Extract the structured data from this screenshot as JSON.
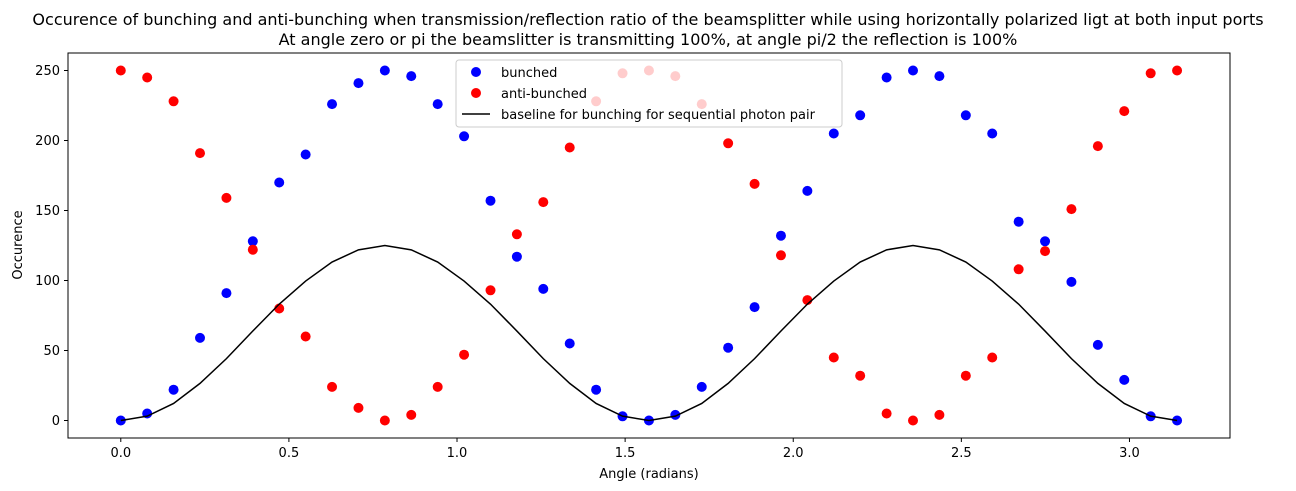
{
  "chart_data": {
    "type": "scatter",
    "title": "Occurence of bunching and anti-bunching when transmission/reflection ratio of the beamsplitter while using horizontally polarized ligt at both input ports",
    "subtitle": "At angle zero or pi the beamslitter is transmitting 100%, at angle pi/2 the reflection is 100%",
    "xlabel": "Angle (radians)",
    "ylabel": "Occurence",
    "xlim": [
      -0.157,
      3.299
    ],
    "ylim": [
      -12.5,
      262.5
    ],
    "xticks": [
      0.0,
      0.5,
      1.0,
      1.5,
      2.0,
      2.5,
      3.0
    ],
    "xtick_labels": [
      "0.0",
      "0.5",
      "1.0",
      "1.5",
      "2.0",
      "2.5",
      "3.0"
    ],
    "yticks": [
      0,
      50,
      100,
      150,
      200,
      250
    ],
    "ytick_labels": [
      "0",
      "50",
      "100",
      "150",
      "200",
      "250"
    ],
    "grid": false,
    "legend_position": "top-center",
    "x": [
      0.0,
      0.0785,
      0.157,
      0.2356,
      0.3142,
      0.3927,
      0.4712,
      0.5498,
      0.6283,
      0.7069,
      0.7854,
      0.8639,
      0.9425,
      1.021,
      1.0996,
      1.1781,
      1.2566,
      1.3352,
      1.4137,
      1.4923,
      1.5708,
      1.6493,
      1.7279,
      1.8064,
      1.885,
      1.9635,
      2.042,
      2.1206,
      2.1991,
      2.2777,
      2.3562,
      2.4347,
      2.5133,
      2.5918,
      2.6704,
      2.7489,
      2.8274,
      2.906,
      2.9845,
      3.0631,
      3.1416
    ],
    "series": [
      {
        "name": "bunched",
        "kind": "scatter",
        "color": "#0000ff",
        "values": [
          0,
          5,
          22,
          59,
          91,
          128,
          170,
          190,
          226,
          241,
          250,
          246,
          226,
          203,
          157,
          117,
          94,
          55,
          22,
          3,
          0,
          4,
          24,
          52,
          81,
          132,
          164,
          205,
          218,
          245,
          250,
          246,
          218,
          205,
          142,
          128,
          99,
          54,
          29,
          3,
          0
        ]
      },
      {
        "name": "anti-bunched",
        "kind": "scatter",
        "color": "#ff0000",
        "values": [
          250,
          245,
          228,
          191,
          159,
          122,
          80,
          60,
          24,
          9,
          0,
          4,
          24,
          47,
          93,
          133,
          156,
          195,
          228,
          248,
          250,
          246,
          226,
          198,
          169,
          118,
          86,
          45,
          32,
          5,
          0,
          4,
          32,
          45,
          108,
          121,
          151,
          196,
          221,
          248,
          250
        ]
      },
      {
        "name": "baseline for bunching for sequential photon pair",
        "kind": "line",
        "color": "#000000",
        "values": [
          0,
          3.1,
          12.2,
          26.5,
          44.2,
          63.9,
          83.1,
          99.6,
          113.2,
          121.9,
          125,
          121.9,
          113.2,
          99.6,
          83.1,
          63.9,
          44.2,
          26.5,
          12.2,
          3.1,
          0,
          3.1,
          12.2,
          26.5,
          44.2,
          63.9,
          83.1,
          99.6,
          113.2,
          121.9,
          125,
          121.9,
          113.2,
          99.6,
          83.1,
          63.9,
          44.2,
          26.5,
          12.2,
          3.1,
          0
        ]
      }
    ]
  }
}
